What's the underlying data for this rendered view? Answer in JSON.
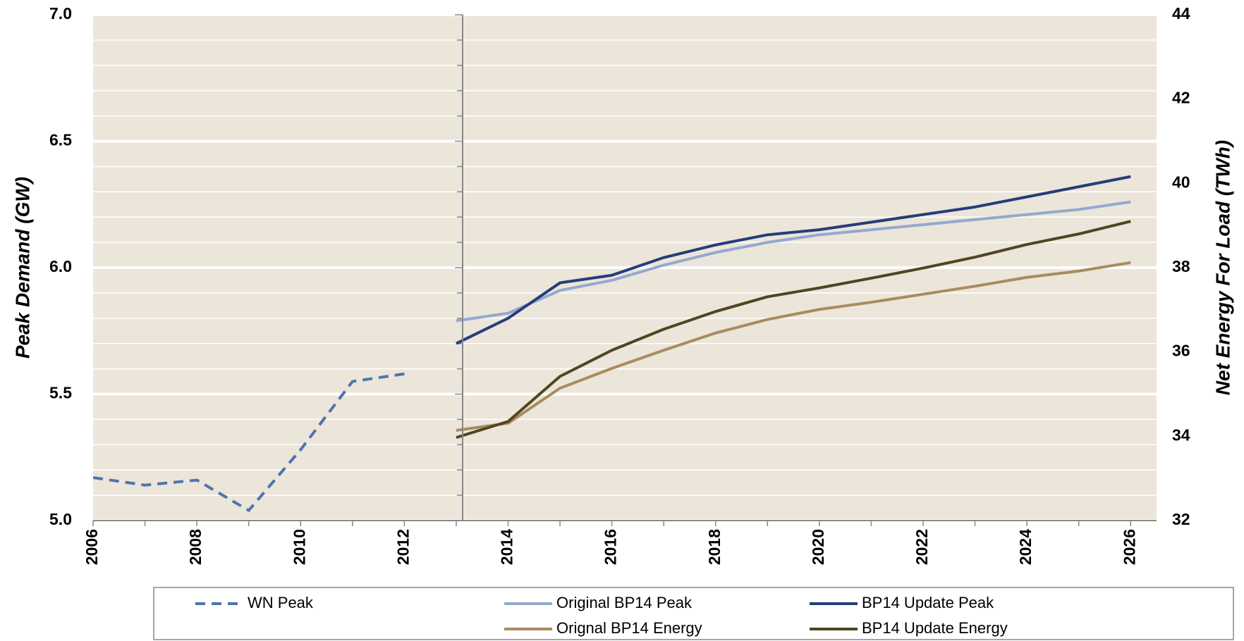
{
  "chart_data": {
    "type": "line",
    "y_label": "Peak Demand (GW)",
    "y2_label": "Net Energy For Load (TWh)",
    "x": [
      2006,
      2007,
      2008,
      2009,
      2010,
      2011,
      2012,
      2013,
      2014,
      2015,
      2016,
      2017,
      2018,
      2019,
      2020,
      2021,
      2022,
      2023,
      2024,
      2025,
      2026
    ],
    "xlim": [
      2006,
      2026.5
    ],
    "xticks": [
      2006,
      2008,
      2010,
      2012,
      2014,
      2016,
      2018,
      2020,
      2022,
      2024,
      2026
    ],
    "ylim": [
      5.0,
      7.0
    ],
    "yticks": [
      {
        "value": 5.0,
        "label": "5.0"
      },
      {
        "value": 5.5,
        "label": "5.5"
      },
      {
        "value": 6.0,
        "label": "6.0"
      },
      {
        "value": 6.5,
        "label": "6.5"
      },
      {
        "value": 7.0,
        "label": "7.0"
      }
    ],
    "minor_yticks": [
      5.1,
      5.2,
      5.3,
      5.4,
      5.6,
      5.7,
      5.8,
      5.9,
      6.1,
      6.2,
      6.3,
      6.4,
      6.6,
      6.7,
      6.8,
      6.9
    ],
    "y2lim": [
      32,
      44
    ],
    "y2ticks": [
      32,
      34,
      36,
      38,
      40,
      42,
      44
    ],
    "grid": true,
    "background": "#ece5da",
    "legend": "bottom",
    "series": [
      {
        "name": "WN Peak",
        "color": "#4f73b0",
        "dashed": true,
        "axis": "y",
        "values": [
          5.17,
          5.14,
          5.16,
          5.04,
          5.28,
          5.55,
          5.58,
          null,
          null,
          null,
          null,
          null,
          null,
          null,
          null,
          null,
          null,
          null,
          null,
          null,
          null
        ]
      },
      {
        "name": "Original BP14 Peak",
        "color": "#94a9cf",
        "axis": "y",
        "values": [
          null,
          null,
          null,
          null,
          null,
          null,
          null,
          5.79,
          5.82,
          5.91,
          5.95,
          6.01,
          6.06,
          6.1,
          6.13,
          6.15,
          6.17,
          6.19,
          6.21,
          6.23,
          6.26
        ]
      },
      {
        "name": "BP14 Update Peak",
        "color": "#253d7a",
        "axis": "y",
        "values": [
          null,
          null,
          null,
          null,
          null,
          null,
          null,
          5.7,
          5.8,
          5.94,
          5.97,
          6.04,
          6.09,
          6.13,
          6.15,
          6.18,
          6.21,
          6.24,
          6.28,
          6.32,
          6.36
        ]
      },
      {
        "name": "Orignal BP14 Energy",
        "color": "#a88c5f",
        "axis": "y2",
        "values": [
          null,
          null,
          null,
          null,
          null,
          null,
          null,
          34.14,
          34.31,
          35.14,
          35.61,
          36.04,
          36.45,
          36.77,
          37.01,
          37.18,
          37.37,
          37.56,
          37.77,
          37.92,
          38.12
        ]
      },
      {
        "name": "BP14 Update Energy",
        "color": "#4f4520",
        "axis": "y2",
        "values": [
          null,
          null,
          null,
          null,
          null,
          null,
          null,
          33.97,
          34.35,
          35.42,
          36.04,
          36.54,
          36.96,
          37.31,
          37.52,
          37.75,
          37.99,
          38.25,
          38.55,
          38.8,
          39.1
        ]
      }
    ]
  }
}
